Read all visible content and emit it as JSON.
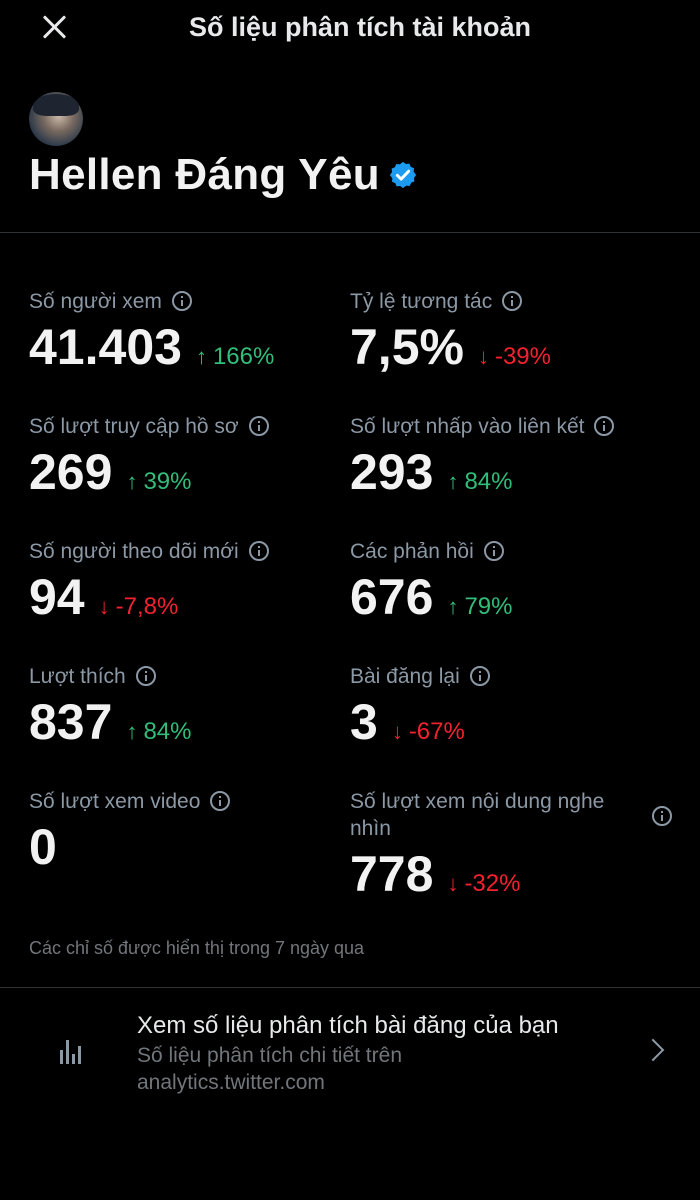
{
  "header": {
    "title": "Số liệu phân tích tài khoản"
  },
  "profile": {
    "name": "Hellen Đáng Yêu"
  },
  "metrics": [
    {
      "label": "Số người xem",
      "value": "41.403",
      "change": "166%",
      "direction": "up"
    },
    {
      "label": "Tỷ lệ tương tác",
      "value": "7,5%",
      "change": "-39%",
      "direction": "down"
    },
    {
      "label": "Số lượt truy cập hồ sơ",
      "value": "269",
      "change": "39%",
      "direction": "up"
    },
    {
      "label": "Số lượt nhấp vào liên kết",
      "value": "293",
      "change": "84%",
      "direction": "up"
    },
    {
      "label": "Số người theo dõi mới",
      "value": "94",
      "change": "-7,8%",
      "direction": "down"
    },
    {
      "label": "Các phản hồi",
      "value": "676",
      "change": "79%",
      "direction": "up"
    },
    {
      "label": "Lượt thích",
      "value": "837",
      "change": "84%",
      "direction": "up"
    },
    {
      "label": "Bài đăng lại",
      "value": "3",
      "change": "-67%",
      "direction": "down"
    },
    {
      "label": "Số lượt xem video",
      "value": "0",
      "change": "",
      "direction": "none"
    },
    {
      "label": "Số lượt xem nội dung nghe nhìn",
      "value": "778",
      "change": "-32%",
      "direction": "down"
    }
  ],
  "arrows": {
    "up": "↑",
    "down": "↓"
  },
  "footnote": "Các chỉ số được hiển thị trong 7 ngày qua",
  "post_analytics": {
    "title": "Xem số liệu phân tích bài đăng của bạn",
    "subtitle": "Số liệu phân tích chi tiết trên analytics.twitter.com"
  },
  "colors": {
    "up": "#32bd79",
    "down": "#f4212e",
    "verified": "#1d9bf0"
  }
}
